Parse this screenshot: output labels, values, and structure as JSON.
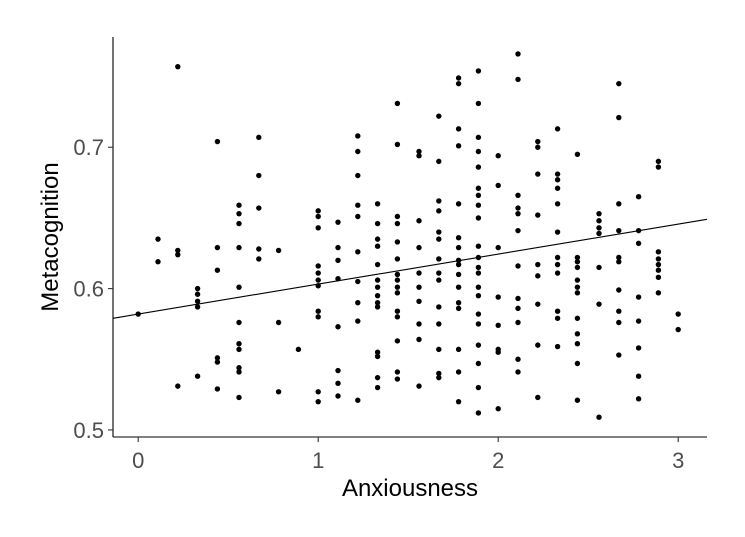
{
  "chart_data": {
    "type": "scatter",
    "xlabel": "Anxiousness",
    "ylabel": "Metacognition",
    "xlim": [
      -0.14,
      3.16
    ],
    "ylim": [
      0.495,
      0.778
    ],
    "x_ticks": [
      0,
      1,
      2,
      3
    ],
    "x_tick_labels": [
      "0",
      "1",
      "2",
      "3"
    ],
    "y_ticks": [
      0.5,
      0.6,
      0.7
    ],
    "y_tick_labels": [
      "0.5",
      "0.6",
      "0.7"
    ],
    "grid": false,
    "legend": "none",
    "point_color": "#000000",
    "trend_line": {
      "x": [
        -0.14,
        3.16
      ],
      "y": [
        0.579,
        0.649
      ]
    },
    "points": [
      [
        0.0,
        0.582
      ],
      [
        0.11,
        0.635
      ],
      [
        0.11,
        0.619
      ],
      [
        0.22,
        0.757
      ],
      [
        0.22,
        0.627
      ],
      [
        0.22,
        0.624
      ],
      [
        0.22,
        0.531
      ],
      [
        0.33,
        0.6
      ],
      [
        0.33,
        0.596
      ],
      [
        0.33,
        0.591
      ],
      [
        0.33,
        0.587
      ],
      [
        0.33,
        0.538
      ],
      [
        0.44,
        0.704
      ],
      [
        0.44,
        0.629
      ],
      [
        0.44,
        0.613
      ],
      [
        0.44,
        0.551
      ],
      [
        0.44,
        0.548
      ],
      [
        0.44,
        0.529
      ],
      [
        0.56,
        0.659
      ],
      [
        0.56,
        0.653
      ],
      [
        0.56,
        0.646
      ],
      [
        0.56,
        0.629
      ],
      [
        0.56,
        0.601
      ],
      [
        0.56,
        0.576
      ],
      [
        0.56,
        0.561
      ],
      [
        0.56,
        0.557
      ],
      [
        0.56,
        0.544
      ],
      [
        0.56,
        0.541
      ],
      [
        0.56,
        0.523
      ],
      [
        0.67,
        0.707
      ],
      [
        0.67,
        0.68
      ],
      [
        0.67,
        0.657
      ],
      [
        0.67,
        0.628
      ],
      [
        0.67,
        0.621
      ],
      [
        0.78,
        0.627
      ],
      [
        0.78,
        0.576
      ],
      [
        0.78,
        0.527
      ],
      [
        0.89,
        0.557
      ],
      [
        1.0,
        0.655
      ],
      [
        1.0,
        0.651
      ],
      [
        1.0,
        0.643
      ],
      [
        1.0,
        0.616
      ],
      [
        1.0,
        0.611
      ],
      [
        1.0,
        0.606
      ],
      [
        1.0,
        0.602
      ],
      [
        1.0,
        0.584
      ],
      [
        1.0,
        0.58
      ],
      [
        1.0,
        0.527
      ],
      [
        1.0,
        0.52
      ],
      [
        1.11,
        0.647
      ],
      [
        1.11,
        0.629
      ],
      [
        1.11,
        0.62
      ],
      [
        1.11,
        0.607
      ],
      [
        1.11,
        0.573
      ],
      [
        1.11,
        0.542
      ],
      [
        1.11,
        0.533
      ],
      [
        1.11,
        0.524
      ],
      [
        1.22,
        0.708
      ],
      [
        1.22,
        0.697
      ],
      [
        1.22,
        0.68
      ],
      [
        1.22,
        0.659
      ],
      [
        1.22,
        0.651
      ],
      [
        1.22,
        0.626
      ],
      [
        1.22,
        0.605
      ],
      [
        1.22,
        0.59
      ],
      [
        1.22,
        0.577
      ],
      [
        1.22,
        0.521
      ],
      [
        1.33,
        0.66
      ],
      [
        1.33,
        0.646
      ],
      [
        1.33,
        0.635
      ],
      [
        1.33,
        0.63
      ],
      [
        1.33,
        0.617
      ],
      [
        1.33,
        0.606
      ],
      [
        1.33,
        0.601
      ],
      [
        1.33,
        0.595
      ],
      [
        1.33,
        0.59
      ],
      [
        1.33,
        0.587
      ],
      [
        1.33,
        0.555
      ],
      [
        1.33,
        0.552
      ],
      [
        1.33,
        0.537
      ],
      [
        1.33,
        0.53
      ],
      [
        1.44,
        0.731
      ],
      [
        1.44,
        0.702
      ],
      [
        1.44,
        0.651
      ],
      [
        1.44,
        0.646
      ],
      [
        1.44,
        0.633
      ],
      [
        1.44,
        0.621
      ],
      [
        1.44,
        0.61
      ],
      [
        1.44,
        0.606
      ],
      [
        1.44,
        0.601
      ],
      [
        1.44,
        0.597
      ],
      [
        1.44,
        0.584
      ],
      [
        1.44,
        0.58
      ],
      [
        1.44,
        0.563
      ],
      [
        1.44,
        0.541
      ],
      [
        1.44,
        0.536
      ],
      [
        1.56,
        0.697
      ],
      [
        1.56,
        0.694
      ],
      [
        1.56,
        0.648
      ],
      [
        1.56,
        0.629
      ],
      [
        1.56,
        0.611
      ],
      [
        1.56,
        0.601
      ],
      [
        1.56,
        0.591
      ],
      [
        1.56,
        0.575
      ],
      [
        1.56,
        0.564
      ],
      [
        1.56,
        0.531
      ],
      [
        1.67,
        0.722
      ],
      [
        1.67,
        0.69
      ],
      [
        1.67,
        0.662
      ],
      [
        1.67,
        0.655
      ],
      [
        1.67,
        0.64
      ],
      [
        1.67,
        0.635
      ],
      [
        1.67,
        0.621
      ],
      [
        1.67,
        0.611
      ],
      [
        1.67,
        0.606
      ],
      [
        1.67,
        0.587
      ],
      [
        1.67,
        0.575
      ],
      [
        1.67,
        0.557
      ],
      [
        1.67,
        0.54
      ],
      [
        1.67,
        0.537
      ],
      [
        1.78,
        0.749
      ],
      [
        1.78,
        0.745
      ],
      [
        1.78,
        0.713
      ],
      [
        1.78,
        0.701
      ],
      [
        1.78,
        0.66
      ],
      [
        1.78,
        0.636
      ],
      [
        1.78,
        0.629
      ],
      [
        1.78,
        0.62
      ],
      [
        1.78,
        0.617
      ],
      [
        1.78,
        0.61
      ],
      [
        1.78,
        0.601
      ],
      [
        1.78,
        0.59
      ],
      [
        1.78,
        0.586
      ],
      [
        1.78,
        0.557
      ],
      [
        1.78,
        0.541
      ],
      [
        1.78,
        0.52
      ],
      [
        1.89,
        0.754
      ],
      [
        1.89,
        0.731
      ],
      [
        1.89,
        0.707
      ],
      [
        1.89,
        0.697
      ],
      [
        1.89,
        0.686
      ],
      [
        1.89,
        0.671
      ],
      [
        1.89,
        0.666
      ],
      [
        1.89,
        0.659
      ],
      [
        1.89,
        0.65
      ],
      [
        1.89,
        0.63
      ],
      [
        1.89,
        0.622
      ],
      [
        1.89,
        0.615
      ],
      [
        1.89,
        0.611
      ],
      [
        1.89,
        0.601
      ],
      [
        1.89,
        0.595
      ],
      [
        1.89,
        0.582
      ],
      [
        1.89,
        0.575
      ],
      [
        1.89,
        0.56
      ],
      [
        1.89,
        0.547
      ],
      [
        1.89,
        0.53
      ],
      [
        1.89,
        0.512
      ],
      [
        2.0,
        0.694
      ],
      [
        2.0,
        0.673
      ],
      [
        2.0,
        0.629
      ],
      [
        2.0,
        0.594
      ],
      [
        2.0,
        0.574
      ],
      [
        2.0,
        0.557
      ],
      [
        2.0,
        0.555
      ],
      [
        2.0,
        0.515
      ],
      [
        2.11,
        0.766
      ],
      [
        2.11,
        0.748
      ],
      [
        2.11,
        0.666
      ],
      [
        2.11,
        0.657
      ],
      [
        2.11,
        0.653
      ],
      [
        2.11,
        0.641
      ],
      [
        2.11,
        0.616
      ],
      [
        2.11,
        0.593
      ],
      [
        2.11,
        0.586
      ],
      [
        2.11,
        0.576
      ],
      [
        2.11,
        0.55
      ],
      [
        2.11,
        0.541
      ],
      [
        2.22,
        0.704
      ],
      [
        2.22,
        0.7
      ],
      [
        2.22,
        0.681
      ],
      [
        2.22,
        0.652
      ],
      [
        2.22,
        0.617
      ],
      [
        2.22,
        0.609
      ],
      [
        2.22,
        0.589
      ],
      [
        2.22,
        0.56
      ],
      [
        2.22,
        0.523
      ],
      [
        2.33,
        0.713
      ],
      [
        2.33,
        0.681
      ],
      [
        2.33,
        0.677
      ],
      [
        2.33,
        0.671
      ],
      [
        2.33,
        0.66
      ],
      [
        2.33,
        0.64
      ],
      [
        2.33,
        0.622
      ],
      [
        2.33,
        0.617
      ],
      [
        2.33,
        0.611
      ],
      [
        2.33,
        0.584
      ],
      [
        2.33,
        0.579
      ],
      [
        2.33,
        0.559
      ],
      [
        2.44,
        0.695
      ],
      [
        2.44,
        0.622
      ],
      [
        2.44,
        0.619
      ],
      [
        2.44,
        0.615
      ],
      [
        2.44,
        0.606
      ],
      [
        2.44,
        0.601
      ],
      [
        2.44,
        0.597
      ],
      [
        2.44,
        0.579
      ],
      [
        2.44,
        0.568
      ],
      [
        2.44,
        0.561
      ],
      [
        2.44,
        0.547
      ],
      [
        2.44,
        0.521
      ],
      [
        2.56,
        0.653
      ],
      [
        2.56,
        0.648
      ],
      [
        2.56,
        0.643
      ],
      [
        2.56,
        0.639
      ],
      [
        2.56,
        0.615
      ],
      [
        2.56,
        0.589
      ],
      [
        2.56,
        0.509
      ],
      [
        2.67,
        0.745
      ],
      [
        2.67,
        0.721
      ],
      [
        2.67,
        0.66
      ],
      [
        2.67,
        0.641
      ],
      [
        2.67,
        0.622
      ],
      [
        2.67,
        0.619
      ],
      [
        2.67,
        0.599
      ],
      [
        2.67,
        0.584
      ],
      [
        2.67,
        0.576
      ],
      [
        2.67,
        0.553
      ],
      [
        2.78,
        0.665
      ],
      [
        2.78,
        0.641
      ],
      [
        2.78,
        0.632
      ],
      [
        2.78,
        0.594
      ],
      [
        2.78,
        0.577
      ],
      [
        2.78,
        0.558
      ],
      [
        2.78,
        0.538
      ],
      [
        2.78,
        0.522
      ],
      [
        2.89,
        0.69
      ],
      [
        2.89,
        0.686
      ],
      [
        2.89,
        0.626
      ],
      [
        2.89,
        0.621
      ],
      [
        2.89,
        0.617
      ],
      [
        2.89,
        0.613
      ],
      [
        2.89,
        0.608
      ],
      [
        2.89,
        0.597
      ],
      [
        3.0,
        0.582
      ],
      [
        3.0,
        0.571
      ]
    ]
  }
}
